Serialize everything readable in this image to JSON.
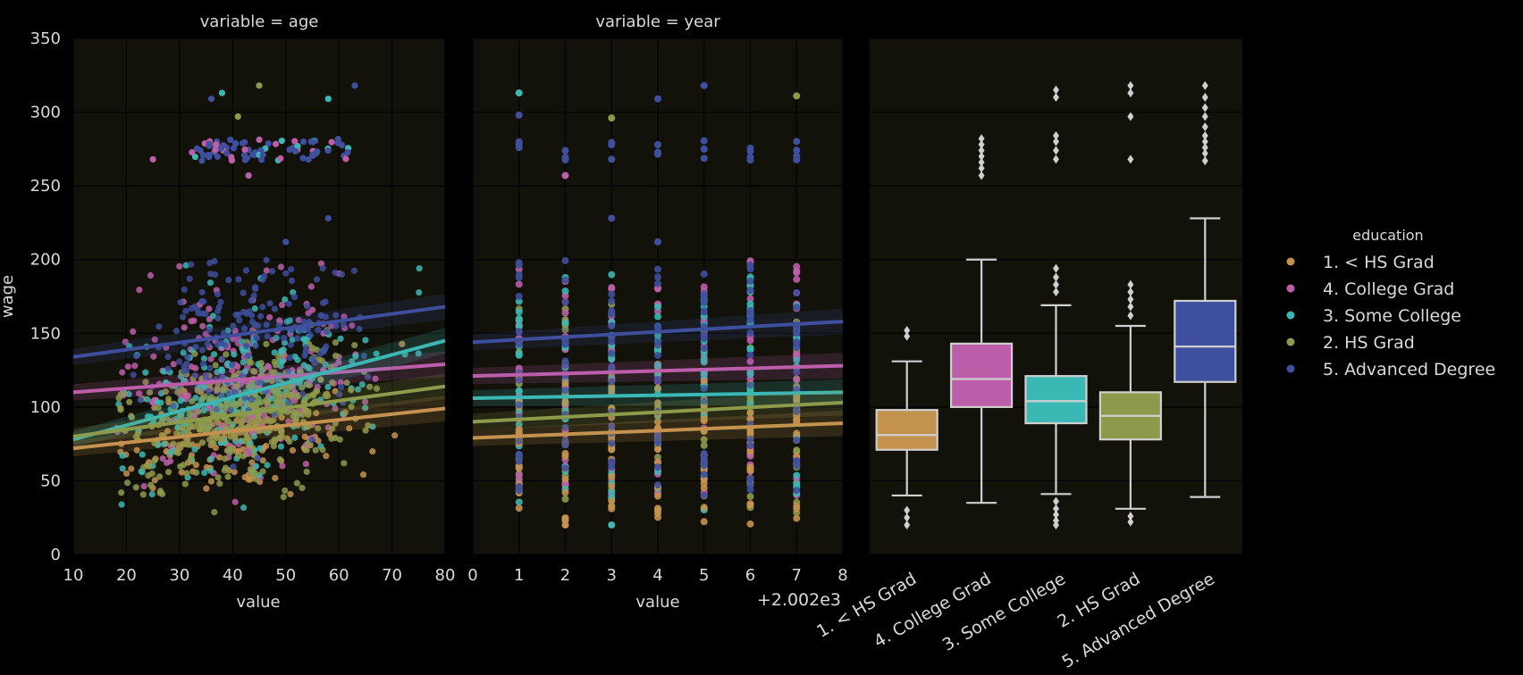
{
  "chart_data": {
    "y_label": "wage",
    "y_ticks": [
      0,
      50,
      100,
      150,
      200,
      250,
      300,
      350
    ],
    "y_range": [
      0,
      350
    ],
    "legend": {
      "title": "education",
      "placement": "right",
      "entries": [
        {
          "label": "1. < HS Grad",
          "color": "#c4924f"
        },
        {
          "label": "4. College Grad",
          "color": "#bd5eaa"
        },
        {
          "label": "3. Some College",
          "color": "#3bb7b4"
        },
        {
          "label": "2. HS Grad",
          "color": "#8d9a4c"
        },
        {
          "label": "5. Advanced Degree",
          "color": "#3e4f9d"
        }
      ]
    },
    "panels": [
      {
        "type": "scatter",
        "title": "variable = age",
        "xlabel": "value",
        "x_range": [
          10,
          80
        ],
        "x_ticks": [
          "10",
          "20",
          "30",
          "40",
          "50",
          "60",
          "70",
          "80"
        ],
        "regression_lines": [
          {
            "series": "5. Advanced Degree",
            "x": [
              10,
              80
            ],
            "y": [
              134,
              168
            ]
          },
          {
            "series": "4. College Grad",
            "x": [
              10,
              80
            ],
            "y": [
              110,
              129
            ]
          },
          {
            "series": "3. Some College",
            "x": [
              10,
              80
            ],
            "y": [
              78,
              145
            ]
          },
          {
            "series": "2. HS Grad",
            "x": [
              10,
              80
            ],
            "y": [
              80,
              114
            ]
          },
          {
            "series": "1. < HS Grad",
            "x": [
              10,
              80
            ],
            "y": [
              72,
              99
            ]
          }
        ]
      },
      {
        "type": "scatter",
        "title": "variable = year",
        "xlabel": "value",
        "x_offset_label": "+2.002e3",
        "x_range": [
          0,
          8
        ],
        "x_ticks": [
          "0",
          "1",
          "2",
          "3",
          "4",
          "5",
          "6",
          "7",
          "8"
        ],
        "regression_lines": [
          {
            "series": "5. Advanced Degree",
            "x": [
              0,
              8
            ],
            "y": [
              144,
              158
            ]
          },
          {
            "series": "4. College Grad",
            "x": [
              0,
              8
            ],
            "y": [
              121,
              128
            ]
          },
          {
            "series": "3. Some College",
            "x": [
              0,
              8
            ],
            "y": [
              106,
              110
            ]
          },
          {
            "series": "2. HS Grad",
            "x": [
              0,
              8
            ],
            "y": [
              90,
              103
            ]
          },
          {
            "series": "1. < HS Grad",
            "x": [
              0,
              8
            ],
            "y": [
              79,
              89
            ]
          }
        ]
      },
      {
        "type": "box",
        "title": "",
        "categories": [
          "1. < HS Grad",
          "4. College Grad",
          "3. Some College",
          "2. HS Grad",
          "5. Advanced Degree"
        ],
        "boxes": [
          {
            "q1": 71,
            "median": 81,
            "q3": 98,
            "whisker_low": 40,
            "whisker_high": 131,
            "outliers": [
              148,
              152,
              30,
              25,
              20
            ]
          },
          {
            "q1": 100,
            "median": 119,
            "q3": 143,
            "whisker_low": 35,
            "whisker_high": 200,
            "outliers": [
              257,
              262,
              266,
              270,
              274,
              278,
              282
            ]
          },
          {
            "q1": 89,
            "median": 104,
            "q3": 121,
            "whisker_low": 41,
            "whisker_high": 169,
            "outliers": [
              178,
              183,
              188,
              194,
              268,
              274,
              280,
              284,
              310,
              315,
              36,
              31,
              27,
              23,
              20
            ]
          },
          {
            "q1": 78,
            "median": 94,
            "q3": 110,
            "whisker_low": 31,
            "whisker_high": 155,
            "outliers": [
              162,
              168,
              173,
              178,
              183,
              268,
              297,
              313,
              318,
              26,
              22
            ]
          },
          {
            "q1": 117,
            "median": 141,
            "q3": 172,
            "whisker_low": 39,
            "whisker_high": 228,
            "outliers": [
              267,
              272,
              276,
              280,
              284,
              290,
              297,
              303,
              310,
              318
            ]
          }
        ]
      }
    ]
  }
}
